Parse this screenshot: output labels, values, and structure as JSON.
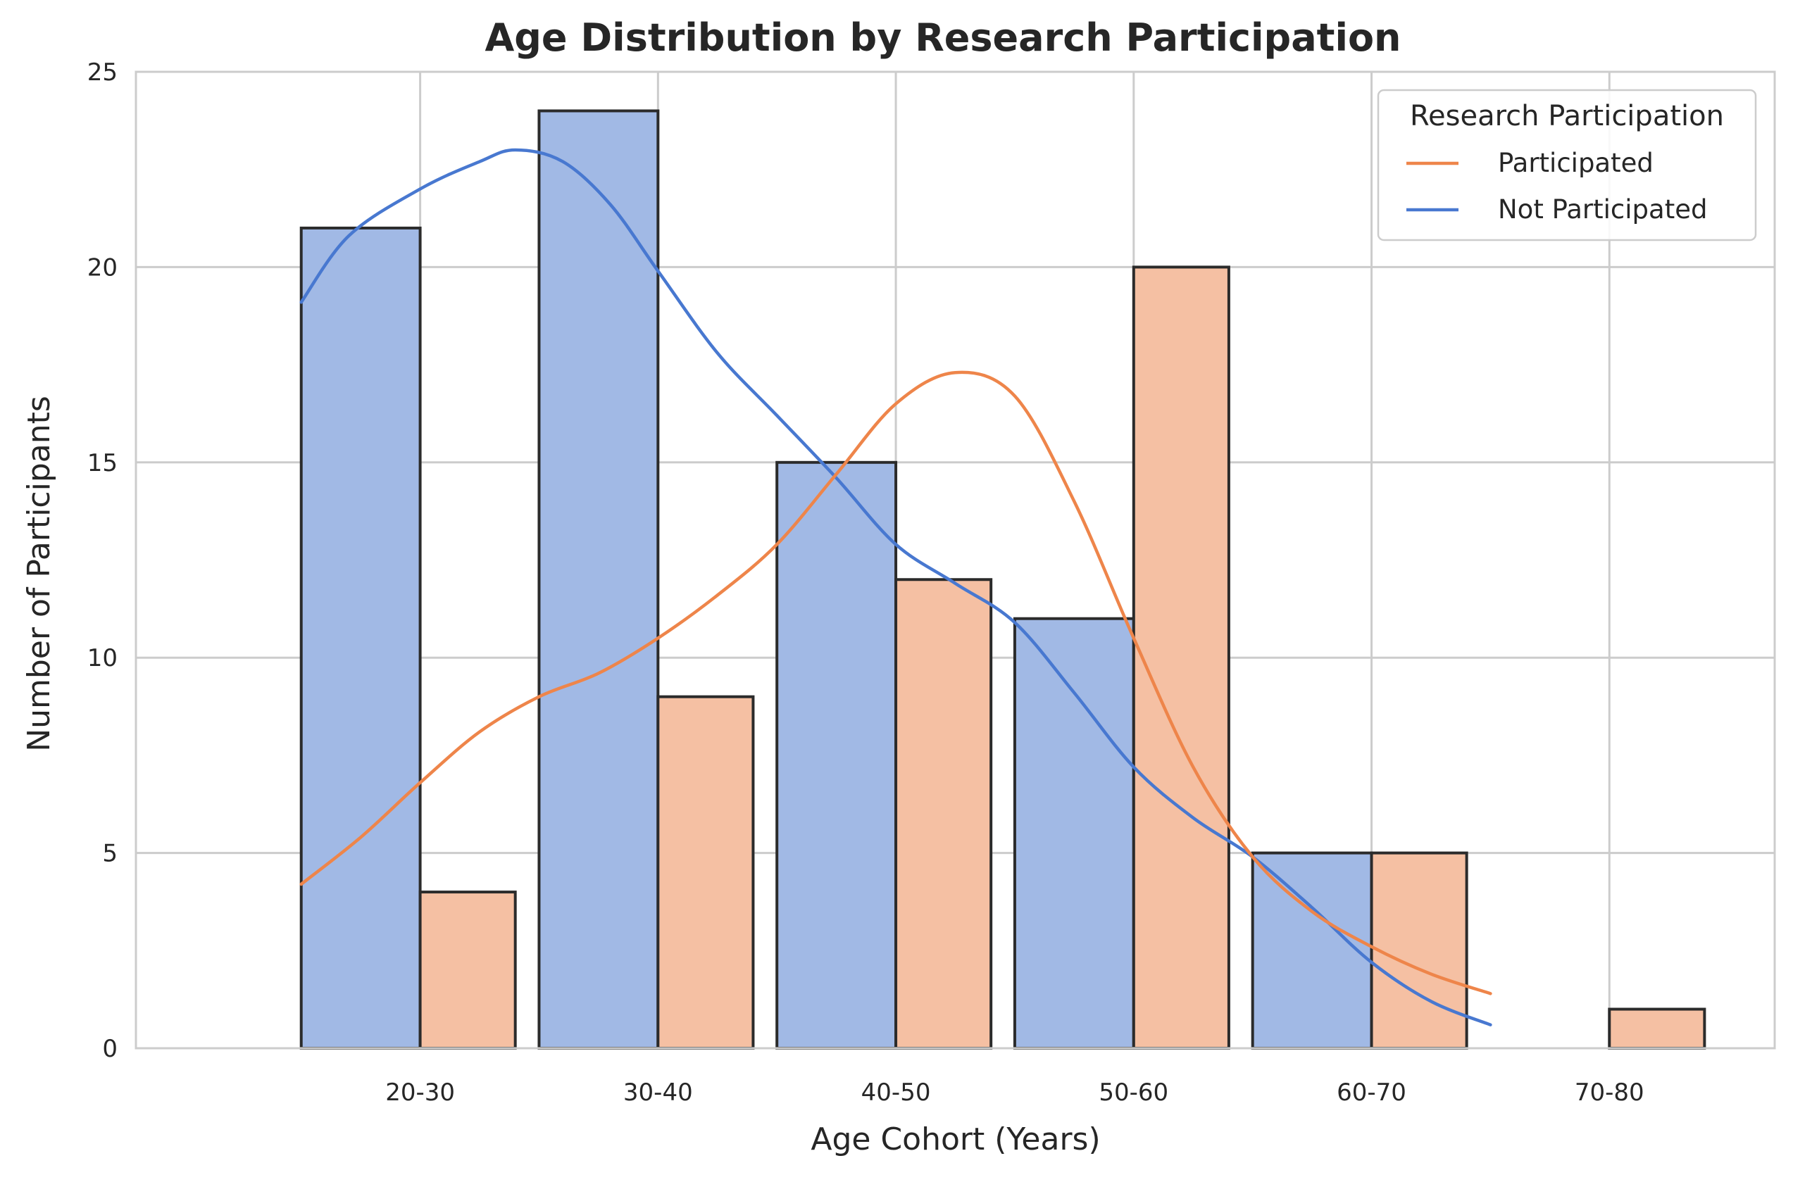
{
  "chart_data": {
    "type": "bar",
    "title": "Age Distribution by Research Participation",
    "xlabel": "Age Cohort (Years)",
    "ylabel": "Number of Participants",
    "categories": [
      "20-30",
      "30-40",
      "40-50",
      "50-60",
      "60-70",
      "70-80"
    ],
    "ylim": [
      0,
      25
    ],
    "yticks": [
      0,
      5,
      10,
      15,
      20,
      25
    ],
    "grid": true,
    "legend": {
      "title": "Research Participation",
      "position": "top-right",
      "entries": [
        "Participated",
        "Not Participated"
      ]
    },
    "series": [
      {
        "name": "Not Participated",
        "values": [
          21,
          24,
          15,
          11,
          5,
          0
        ],
        "bar_color": "#a1b9e5",
        "line_color": "#4878d0",
        "kde": [
          [
            20,
            19.1
          ],
          [
            22,
            20.8
          ],
          [
            25,
            22.0
          ],
          [
            27.5,
            22.7
          ],
          [
            29,
            23.0
          ],
          [
            31,
            22.7
          ],
          [
            33,
            21.6
          ],
          [
            35,
            19.9
          ],
          [
            37.5,
            17.8
          ],
          [
            40,
            16.2
          ],
          [
            42.5,
            14.6
          ],
          [
            45,
            12.9
          ],
          [
            47.5,
            11.9
          ],
          [
            50,
            10.9
          ],
          [
            52.5,
            9.1
          ],
          [
            55,
            7.2
          ],
          [
            57.5,
            5.9
          ],
          [
            60,
            4.9
          ],
          [
            62.5,
            3.6
          ],
          [
            65,
            2.2
          ],
          [
            67.5,
            1.2
          ],
          [
            70,
            0.6
          ]
        ]
      },
      {
        "name": "Participated",
        "values": [
          4,
          9,
          12,
          20,
          5,
          1
        ],
        "bar_color": "#f5c0a3",
        "line_color": "#ee854a",
        "kde": [
          [
            20,
            4.2
          ],
          [
            22.5,
            5.4
          ],
          [
            25,
            6.8
          ],
          [
            27.5,
            8.1
          ],
          [
            30,
            9.0
          ],
          [
            32.5,
            9.6
          ],
          [
            35,
            10.5
          ],
          [
            37.5,
            11.6
          ],
          [
            40,
            12.9
          ],
          [
            42.5,
            14.7
          ],
          [
            45,
            16.5
          ],
          [
            47.5,
            17.3
          ],
          [
            50,
            16.7
          ],
          [
            52.5,
            14.0
          ],
          [
            55,
            10.5
          ],
          [
            57.5,
            7.2
          ],
          [
            60,
            4.9
          ],
          [
            62.5,
            3.5
          ],
          [
            65,
            2.6
          ],
          [
            67.5,
            1.9
          ],
          [
            70,
            1.4
          ]
        ]
      }
    ]
  }
}
